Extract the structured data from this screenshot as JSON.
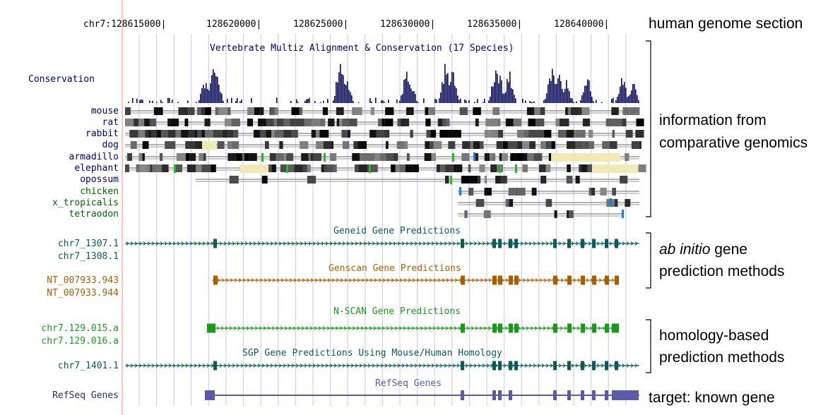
{
  "coords": {
    "chrom_label": "chr7:128615000|",
    "ticks": [
      "128620000|",
      "128625000|",
      "128630000|",
      "128635000|",
      "128640000|"
    ]
  },
  "tracks": {
    "conservation": {
      "title": "Vertebrate Multiz Alignment & Conservation (17 Species)",
      "label": "Conservation",
      "species": [
        "mouse",
        "rat",
        "rabbit",
        "dog",
        "armadillo",
        "elephant",
        "opossum",
        "chicken",
        "x_tropicalis",
        "tetraodon"
      ]
    },
    "geneid": {
      "title": "Geneid Gene Predictions",
      "labels": [
        "chr7_1307.1",
        "chr7_1308.1"
      ]
    },
    "genscan": {
      "title": "Genscan Gene Predictions",
      "labels": [
        "NT_007933.943",
        "NT_007933.944"
      ]
    },
    "nscan": {
      "title": "N-SCAN Gene Predictions",
      "labels": [
        "chr7.129.015.a",
        "chr7.129.016.a"
      ]
    },
    "sgp": {
      "title": "SGP Gene Predictions Using Mouse/Human Homology",
      "labels": [
        "chr7_1401.1"
      ]
    },
    "refseq": {
      "title": "RefSeq Genes",
      "labels": [
        "RefSeq Genes"
      ]
    }
  },
  "annotations": {
    "genome": "human genome section",
    "comparative": [
      "information from",
      "comparative genomics"
    ],
    "abinitio_italic": "ab initio",
    "abinitio": [
      " gene",
      "prediction methods"
    ],
    "homology": [
      "homology-based",
      "prediction methods"
    ],
    "target": "target: known gene"
  },
  "colors": {
    "label_blue": "#000066",
    "conservation_bar": "#0a0a5a",
    "green_label": "#006600",
    "geneid": "#0b5b5b",
    "genscan": "#a85f00",
    "nscan": "#1a9a1a",
    "sgp": "#0b5b5b",
    "refseq": "#5a5aa8",
    "grid": "#c8c8f0",
    "ruler": "#ffb0b0"
  }
}
